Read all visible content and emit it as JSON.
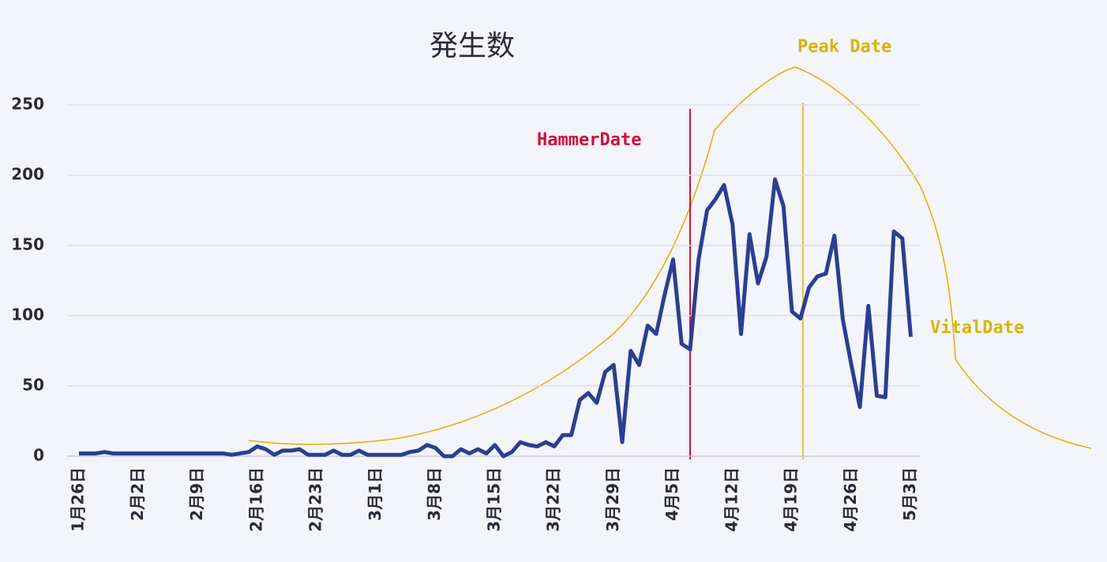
{
  "chart_data": {
    "type": "line",
    "title": "発生数",
    "categories": [
      "1月26日",
      null,
      null,
      null,
      null,
      null,
      null,
      "2月2日",
      null,
      null,
      null,
      null,
      null,
      null,
      "2月9日",
      null,
      null,
      null,
      null,
      null,
      null,
      "2月16日",
      null,
      null,
      null,
      null,
      null,
      null,
      "2月23日",
      null,
      null,
      null,
      null,
      null,
      null,
      "3月1日",
      null,
      null,
      null,
      null,
      null,
      null,
      "3月8日",
      null,
      null,
      null,
      null,
      null,
      null,
      "3月15日",
      null,
      null,
      null,
      null,
      null,
      null,
      "3月22日",
      null,
      null,
      null,
      null,
      null,
      null,
      "3月29日",
      null,
      null,
      null,
      null,
      null,
      null,
      "4月5日",
      null,
      null,
      null,
      null,
      null,
      null,
      "4月12日",
      null,
      null,
      null,
      null,
      null,
      null,
      "4月19日",
      null,
      null,
      null,
      null,
      null,
      null,
      "4月26日",
      null,
      null,
      null,
      null,
      null,
      null,
      "5月3日"
    ],
    "series": [
      {
        "color": "#2b3f91",
        "values": [
          2,
          2,
          2,
          3,
          2,
          2,
          2,
          2,
          2,
          2,
          2,
          2,
          2,
          2,
          2,
          2,
          2,
          2,
          1,
          2,
          3,
          7,
          5,
          1,
          4,
          4,
          5,
          1,
          1,
          1,
          4,
          1,
          1,
          4,
          1,
          1,
          1,
          1,
          1,
          3,
          4,
          8,
          6,
          0,
          0,
          5,
          2,
          5,
          2,
          8,
          0,
          3,
          10,
          8,
          7,
          10,
          7,
          15,
          15,
          40,
          45,
          38,
          60,
          65,
          10,
          75,
          65,
          93,
          87,
          115,
          140,
          80,
          76,
          140,
          175,
          183,
          193,
          165,
          87,
          158,
          123,
          142,
          197,
          178,
          103,
          98,
          120,
          128,
          130,
          157,
          97,
          65,
          35,
          107,
          43,
          42,
          160,
          155,
          85
        ]
      }
    ],
    "ylim": [
      0,
      250
    ],
    "yticks": [
      0,
      50,
      100,
      150,
      200,
      250
    ],
    "grid": true,
    "annotations": [
      {
        "text": "HammerDate",
        "color": "#d0103a"
      },
      {
        "text": "Peak Date",
        "color": "#d8b400"
      },
      {
        "text": "VitalDate",
        "color": "#d8b400"
      }
    ]
  }
}
